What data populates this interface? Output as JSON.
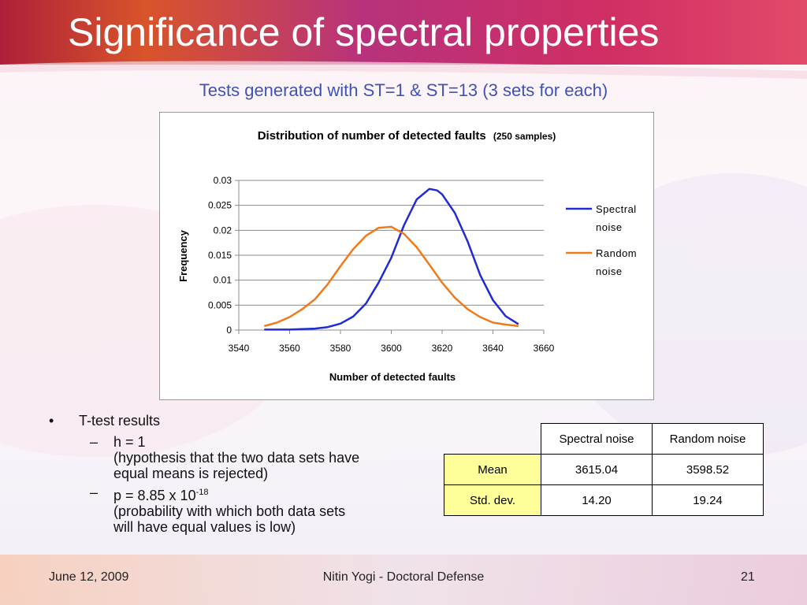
{
  "slide": {
    "title": "Significance of spectral properties",
    "subtitle": "Tests generated with ST=1 & ST=13 (3 sets for each)"
  },
  "chart_data": {
    "type": "line",
    "title": "Distribution of number of detected faults",
    "title_suffix": "(250 samples)",
    "xlabel": "Number of detected faults",
    "ylabel": "Frequency",
    "xlim": [
      3540,
      3660
    ],
    "ylim": [
      0,
      0.03
    ],
    "x_ticks": [
      "3540",
      "3560",
      "3580",
      "3600",
      "3620",
      "3640",
      "3660"
    ],
    "y_ticks": [
      "0",
      "0.005",
      "0.01",
      "0.015",
      "0.02",
      "0.025",
      "0.03"
    ],
    "legend_position": "right",
    "grid": "horizontal",
    "series": [
      {
        "name": "Spectral noise",
        "color": "#1f2bd6",
        "x": [
          3550,
          3555,
          3560,
          3565,
          3570,
          3575,
          3580,
          3585,
          3590,
          3595,
          3600,
          3605,
          3610,
          3615,
          3618,
          3620,
          3625,
          3630,
          3635,
          3640,
          3645,
          3650
        ],
        "y": [
          0.0001,
          0.0001,
          0.0001,
          0.0002,
          0.0003,
          0.0006,
          0.0013,
          0.0027,
          0.0053,
          0.0095,
          0.0145,
          0.021,
          0.0262,
          0.0283,
          0.028,
          0.0272,
          0.0235,
          0.0178,
          0.011,
          0.006,
          0.0028,
          0.0012
        ]
      },
      {
        "name": "Random noise",
        "color": "#f07a1a",
        "x": [
          3550,
          3555,
          3560,
          3565,
          3570,
          3575,
          3580,
          3585,
          3590,
          3595,
          3600,
          3605,
          3610,
          3615,
          3620,
          3625,
          3630,
          3635,
          3640,
          3645,
          3650
        ],
        "y": [
          0.0008,
          0.0015,
          0.0026,
          0.0042,
          0.0062,
          0.0092,
          0.0128,
          0.0162,
          0.0189,
          0.0205,
          0.0207,
          0.0193,
          0.0166,
          0.0131,
          0.0095,
          0.0065,
          0.0042,
          0.0026,
          0.0015,
          0.0011,
          0.0008
        ]
      }
    ]
  },
  "bullets": {
    "main": "T-test results",
    "sub1_line1": "h = 1",
    "sub1_line2": "(hypothesis that the two data sets have",
    "sub1_line3": "equal means is rejected)",
    "sub2_base": "p = 8.85 x 10",
    "sub2_exp": "-18",
    "sub2_line2": "(probability with which both data sets",
    "sub2_line3": "will have equal values is low)"
  },
  "stats_table": {
    "col1": "Spectral noise",
    "col2": "Random noise",
    "row1_label": "Mean",
    "row1_v1": "3615.04",
    "row1_v2": "3598.52",
    "row2_label": "Std. dev.",
    "row2_v1": "14.20",
    "row2_v2": "19.24"
  },
  "footer": {
    "date": "June 12, 2009",
    "center": "Nitin Yogi - Doctoral Defense",
    "page": "21"
  }
}
